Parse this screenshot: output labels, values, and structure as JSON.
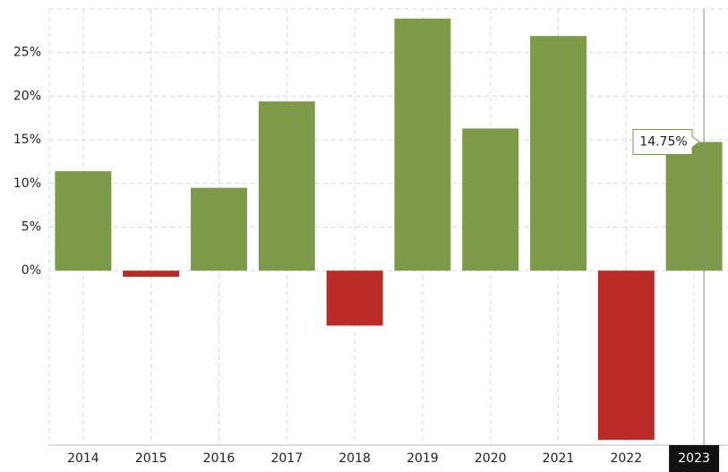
{
  "chart_data": {
    "type": "bar",
    "categories": [
      "2014",
      "2015",
      "2016",
      "2017",
      "2018",
      "2019",
      "2020",
      "2021",
      "2022",
      "2023"
    ],
    "values": [
      11.4,
      -0.7,
      9.5,
      19.4,
      -6.3,
      28.9,
      16.3,
      26.9,
      -19.4,
      14.75
    ],
    "value_labels": [
      null,
      null,
      null,
      null,
      null,
      null,
      null,
      null,
      null,
      "14.75%"
    ],
    "positive_color": "#7d9a48",
    "negative_color": "#b92b27",
    "ylim": [
      -20,
      30
    ],
    "yticks": [
      {
        "value": 0,
        "label": "0%"
      },
      {
        "value": 5,
        "label": "5%"
      },
      {
        "value": 10,
        "label": "10%"
      },
      {
        "value": 15,
        "label": "15%"
      },
      {
        "value": 20,
        "label": "20%"
      },
      {
        "value": 25,
        "label": "25%"
      }
    ],
    "grid": true
  }
}
